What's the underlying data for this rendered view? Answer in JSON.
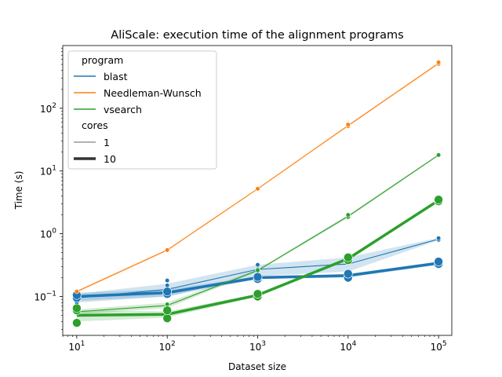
{
  "chart_data": {
    "type": "line",
    "title": "AliScale: execution time of the alignment programs",
    "xlabel": "Dataset size",
    "ylabel": "Time (s)",
    "x_scale": "log",
    "y_scale": "log",
    "xlim": [
      7,
      140000
    ],
    "ylim": [
      0.024,
      1000
    ],
    "x_ticks": [
      {
        "value": 10,
        "base": "10",
        "exp": "1"
      },
      {
        "value": 100,
        "base": "10",
        "exp": "2"
      },
      {
        "value": 1000,
        "base": "10",
        "exp": "3"
      },
      {
        "value": 10000,
        "base": "10",
        "exp": "4"
      },
      {
        "value": 100000,
        "base": "10",
        "exp": "5"
      }
    ],
    "y_ticks": [
      {
        "value": 0.1,
        "base": "10",
        "exp": "−1"
      },
      {
        "value": 1,
        "base": "10",
        "exp": "0"
      },
      {
        "value": 10,
        "base": "10",
        "exp": "1"
      },
      {
        "value": 100,
        "base": "10",
        "exp": "2"
      }
    ],
    "x": [
      10,
      100,
      1000,
      10000,
      100000
    ],
    "series": [
      {
        "program": "blast",
        "cores": "1",
        "color": "#1f77b4",
        "mean": [
          0.095,
          0.13,
          0.27,
          0.33,
          0.82
        ],
        "ci_low": [
          0.08,
          0.1,
          0.21,
          0.25,
          0.79
        ],
        "ci_high": [
          0.11,
          0.16,
          0.32,
          0.42,
          0.86
        ],
        "points": [
          [
            10,
            0.09
          ],
          [
            10,
            0.1
          ],
          [
            10,
            0.11
          ],
          [
            10,
            0.08
          ],
          [
            100,
            0.1
          ],
          [
            100,
            0.12
          ],
          [
            100,
            0.15
          ],
          [
            100,
            0.18
          ],
          [
            1000,
            0.22
          ],
          [
            1000,
            0.27
          ],
          [
            1000,
            0.32
          ],
          [
            10000,
            0.25
          ],
          [
            10000,
            0.35
          ],
          [
            10000,
            0.4
          ],
          [
            100000,
            0.8
          ],
          [
            100000,
            0.85
          ]
        ]
      },
      {
        "program": "blast",
        "cores": "10",
        "color": "#1f77b4",
        "mean": [
          0.1,
          0.115,
          0.2,
          0.215,
          0.34
        ],
        "ci_low": [
          0.085,
          0.1,
          0.19,
          0.2,
          0.32
        ],
        "ci_high": [
          0.115,
          0.13,
          0.21,
          0.23,
          0.36
        ],
        "points": [
          [
            10,
            0.095
          ],
          [
            10,
            0.105
          ],
          [
            100,
            0.11
          ],
          [
            100,
            0.12
          ],
          [
            1000,
            0.19
          ],
          [
            1000,
            0.205
          ],
          [
            10000,
            0.2
          ],
          [
            10000,
            0.23
          ],
          [
            100000,
            0.33
          ],
          [
            100000,
            0.36
          ]
        ]
      },
      {
        "program": "Needleman-Wunsch",
        "cores": "1",
        "color": "#ff7f0e",
        "mean": [
          0.12,
          0.55,
          5.2,
          53,
          520
        ],
        "ci_low": [
          0.115,
          0.53,
          5.1,
          51,
          500
        ],
        "ci_high": [
          0.125,
          0.57,
          5.3,
          55,
          540
        ],
        "points": [
          [
            10,
            0.12
          ],
          [
            100,
            0.55
          ],
          [
            1000,
            5.2
          ],
          [
            10000,
            52
          ],
          [
            10000,
            55
          ],
          [
            100000,
            510
          ],
          [
            100000,
            540
          ]
        ]
      },
      {
        "program": "vsearch",
        "cores": "1",
        "color": "#2ca02c",
        "mean": [
          0.057,
          0.072,
          0.26,
          1.9,
          18
        ],
        "ci_low": [
          0.052,
          0.065,
          0.25,
          1.8,
          17.5
        ],
        "ci_high": [
          0.062,
          0.08,
          0.27,
          2.0,
          18.5
        ],
        "points": [
          [
            10,
            0.056
          ],
          [
            10,
            0.06
          ],
          [
            100,
            0.07
          ],
          [
            100,
            0.075
          ],
          [
            1000,
            0.26
          ],
          [
            10000,
            1.85
          ],
          [
            10000,
            2.0
          ],
          [
            100000,
            18
          ]
        ]
      },
      {
        "program": "vsearch",
        "cores": "10",
        "color": "#2ca02c",
        "mean": [
          0.05,
          0.052,
          0.105,
          0.4,
          3.4
        ],
        "ci_low": [
          0.04,
          0.046,
          0.1,
          0.38,
          3.3
        ],
        "ci_high": [
          0.06,
          0.058,
          0.11,
          0.42,
          3.5
        ],
        "points": [
          [
            10,
            0.038
          ],
          [
            10,
            0.06
          ],
          [
            10,
            0.065
          ],
          [
            100,
            0.045
          ],
          [
            100,
            0.06
          ],
          [
            1000,
            0.1
          ],
          [
            1000,
            0.11
          ],
          [
            10000,
            0.38
          ],
          [
            10000,
            0.42
          ],
          [
            100000,
            3.3
          ],
          [
            100000,
            3.5
          ]
        ]
      }
    ],
    "legend": {
      "placement": "upper-left",
      "hue_title": "program",
      "hue_entries": [
        {
          "label": "blast",
          "color": "#1f77b4"
        },
        {
          "label": "Needleman-Wunsch",
          "color": "#ff7f0e"
        },
        {
          "label": "vsearch",
          "color": "#2ca02c"
        }
      ],
      "size_title": "cores",
      "size_entries": [
        {
          "label": "1"
        },
        {
          "label": "10"
        }
      ]
    },
    "grid": false
  }
}
